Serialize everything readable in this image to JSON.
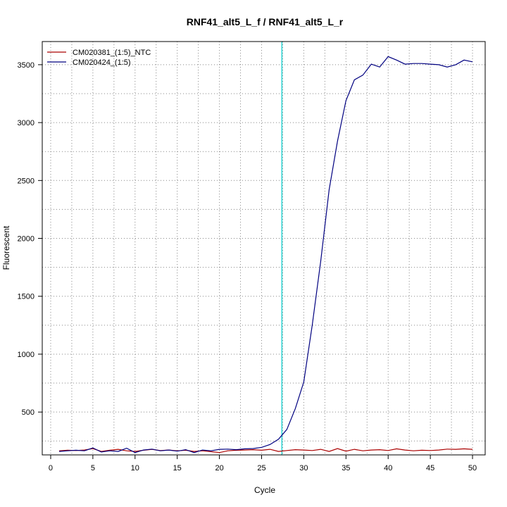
{
  "chart_data": {
    "type": "line",
    "title": "RNF41_alt5_L_f / RNF41_alt5_L_r",
    "xlabel": "Cycle",
    "ylabel": "Fluorescent",
    "xlim": [
      -1,
      51.5
    ],
    "ylim": [
      130,
      3700
    ],
    "xticks": [
      0,
      5,
      10,
      15,
      20,
      25,
      30,
      35,
      40,
      45,
      50
    ],
    "yticks": [
      500,
      1000,
      1500,
      2000,
      2500,
      3000,
      3500
    ],
    "grid": true,
    "legend_position": "top-left",
    "threshold_cycle": 27.4,
    "colors": {
      "threshold": "#00cccc",
      "grid": "#888888",
      "axis": "#000000"
    },
    "series": [
      {
        "name": "CM020381_(1:5)_NTC",
        "color": "#aa0000",
        "x": [
          1,
          2,
          3,
          4,
          5,
          6,
          7,
          8,
          9,
          10,
          11,
          12,
          13,
          14,
          15,
          16,
          17,
          18,
          19,
          20,
          21,
          22,
          23,
          24,
          25,
          26,
          27,
          28,
          29,
          30,
          31,
          32,
          33,
          34,
          35,
          36,
          37,
          38,
          39,
          40,
          41,
          42,
          43,
          44,
          45,
          46,
          47,
          48,
          49,
          50
        ],
        "values": [
          165,
          170,
          168,
          172,
          185,
          160,
          170,
          178,
          165,
          160,
          170,
          178,
          168,
          172,
          165,
          170,
          160,
          165,
          158,
          150,
          165,
          170,
          172,
          175,
          170,
          178,
          160,
          168,
          175,
          172,
          168,
          178,
          160,
          185,
          162,
          178,
          165,
          172,
          175,
          168,
          182,
          172,
          165,
          170,
          168,
          172,
          180,
          178,
          182,
          178
        ]
      },
      {
        "name": "CM020424_(1:5)",
        "color": "#000080",
        "x": [
          1,
          2,
          3,
          4,
          5,
          6,
          7,
          8,
          9,
          10,
          11,
          12,
          13,
          14,
          15,
          16,
          17,
          18,
          19,
          20,
          21,
          22,
          23,
          24,
          25,
          26,
          27,
          28,
          29,
          30,
          31,
          32,
          33,
          34,
          35,
          36,
          37,
          38,
          39,
          40,
          41,
          42,
          43,
          44,
          45,
          46,
          47,
          48,
          49,
          50
        ],
        "values": [
          160,
          165,
          170,
          165,
          190,
          155,
          165,
          160,
          188,
          150,
          172,
          180,
          165,
          172,
          162,
          175,
          150,
          172,
          165,
          178,
          180,
          175,
          182,
          185,
          195,
          220,
          265,
          350,
          530,
          760,
          1250,
          1800,
          2420,
          2840,
          3190,
          3370,
          3410,
          3505,
          3480,
          3570,
          3540,
          3505,
          3510,
          3510,
          3505,
          3500,
          3480,
          3500,
          3540,
          3525
        ]
      }
    ]
  }
}
